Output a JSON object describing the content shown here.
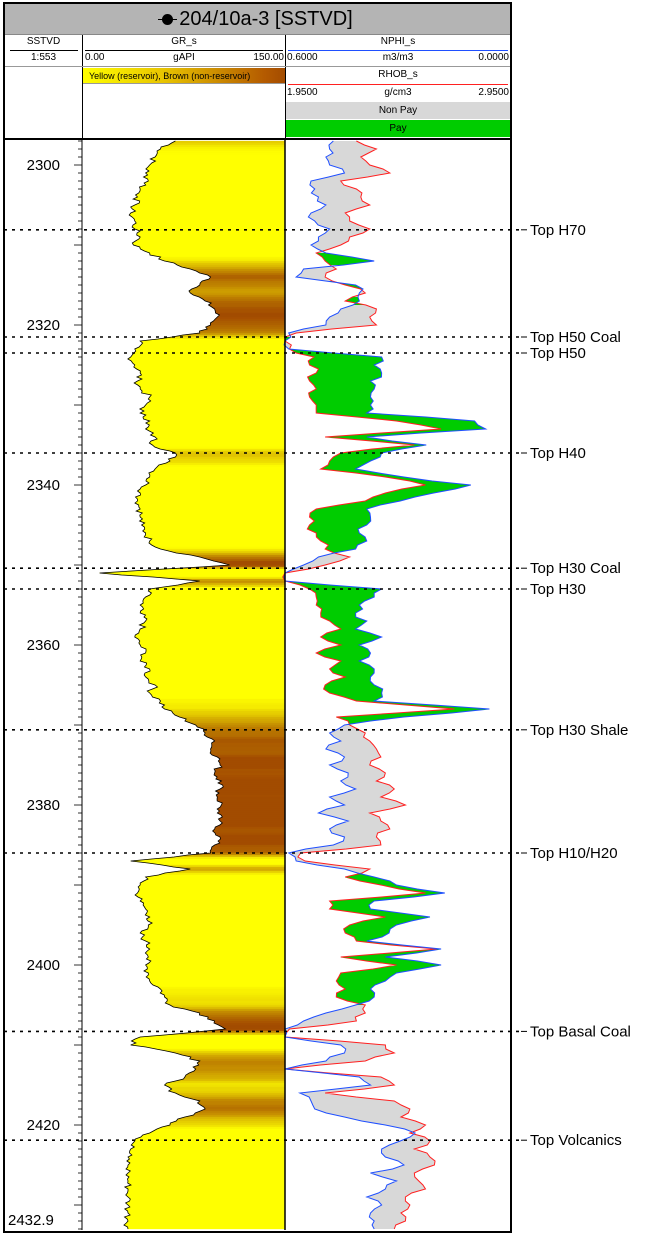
{
  "header": {
    "title": "204/10a-3 [SSTVD]",
    "depth_track": {
      "name": "SSTVD",
      "scale": "1:553"
    },
    "gr_track": {
      "name": "GR_s",
      "min": "0.00",
      "unit": "gAPI",
      "max": "150.00",
      "fill_legend": "Yellow (reservoir), Brown (non-reservoir)",
      "curve_color": "#000000"
    },
    "nphi_track": {
      "name": "NPHI_s",
      "min": "0.6000",
      "unit": "m3/m3",
      "max": "0.0000",
      "curve_color": "#1f4fff"
    },
    "rhob_track": {
      "name": "RHOB_s",
      "min": "1.9500",
      "unit": "g/cm3",
      "max": "2.9500",
      "curve_color": "#ff2020"
    },
    "legend_nonpay": "Non Pay",
    "legend_pay": "Pay"
  },
  "colors": {
    "reservoir": "#ffff00",
    "non_reservoir": "#a34c00",
    "pay": "#00cc00",
    "non_pay": "#d8d8d8"
  },
  "chart_data": {
    "type": "line",
    "title": "204/10a-3 [SSTVD]",
    "ylabel": "SSTVD",
    "ylim": [
      2296.9,
      2432.9
    ],
    "depth_ticks": [
      "2300",
      "2320",
      "2340",
      "2360",
      "2380",
      "2400",
      "2420"
    ],
    "bottom_depth_label": "2432.9",
    "depth_start": 2297,
    "depth_step": 1,
    "series": [
      {
        "name": "GR_s",
        "unit": "gAPI",
        "xlim": [
          0,
          150
        ],
        "values": [
          69,
          58,
          54,
          50,
          47,
          49,
          43,
          41,
          39,
          36,
          39,
          39,
          43,
          38,
          50,
          61,
          80,
          95,
          87,
          80,
          91,
          98,
          100,
          95,
          87,
          43,
          39,
          36,
          39,
          43,
          41,
          43,
          50,
          47,
          43,
          50,
          47,
          54,
          52,
          69,
          65,
          54,
          50,
          47,
          43,
          41,
          43,
          43,
          44,
          47,
          50,
          58,
          87,
          109,
          13,
          87,
          50,
          47,
          43,
          43,
          47,
          43,
          39,
          43,
          47,
          43,
          50,
          47,
          54,
          50,
          58,
          61,
          72,
          84,
          91,
          98,
          95,
          100,
          102,
          98,
          103,
          102,
          100,
          103,
          100,
          102,
          98,
          102,
          98,
          95,
          36,
          80,
          47,
          43,
          41,
          43,
          47,
          50,
          49,
          43,
          47,
          50,
          49,
          47,
          49,
          50,
          58,
          61,
          65,
          87,
          98,
          106,
          43,
          36,
          69,
          87,
          84,
          76,
          61,
          69,
          87,
          91,
          76,
          65,
          50,
          39,
          36,
          34,
          34,
          34,
          34,
          34,
          34,
          34,
          34,
          34,
          34
        ]
      },
      {
        "name": "NPHI_s",
        "unit": "m3/m3",
        "xlim": [
          0.6,
          0.0
        ],
        "values": [
          0.47,
          0.48,
          0.49,
          0.48,
          0.44,
          0.53,
          0.52,
          0.51,
          0.49,
          0.53,
          0.52,
          0.48,
          0.51,
          0.53,
          0.49,
          0.36,
          0.55,
          0.57,
          0.41,
          0.4,
          0.4,
          0.45,
          0.48,
          0.49,
          0.59,
          0.6,
          0.59,
          0.34,
          0.36,
          0.34,
          0.37,
          0.36,
          0.37,
          0.37,
          0.38,
          0.09,
          0.06,
          0.38,
          0.22,
          0.34,
          0.37,
          0.41,
          0.28,
          0.1,
          0.2,
          0.29,
          0.38,
          0.37,
          0.38,
          0.4,
          0.38,
          0.41,
          0.51,
          0.55,
          0.6,
          0.6,
          0.34,
          0.36,
          0.4,
          0.41,
          0.38,
          0.41,
          0.34,
          0.4,
          0.37,
          0.4,
          0.36,
          0.37,
          0.36,
          0.34,
          0.36,
          0.05,
          0.28,
          0.44,
          0.48,
          0.45,
          0.49,
          0.44,
          0.48,
          0.43,
          0.45,
          0.41,
          0.48,
          0.44,
          0.51,
          0.43,
          0.48,
          0.44,
          0.47,
          0.59,
          0.57,
          0.44,
          0.36,
          0.3,
          0.17,
          0.36,
          0.37,
          0.21,
          0.3,
          0.32,
          0.38,
          0.18,
          0.33,
          0.18,
          0.3,
          0.33,
          0.37,
          0.36,
          0.41,
          0.49,
          0.55,
          0.6,
          0.6,
          0.45,
          0.44,
          0.49,
          0.6,
          0.4,
          0.37,
          0.56,
          0.53,
          0.52,
          0.44,
          0.33,
          0.25,
          0.29,
          0.34,
          0.33,
          0.28,
          0.37,
          0.3,
          0.33,
          0.38,
          0.34,
          0.37,
          0.36,
          0.36
        ]
      },
      {
        "name": "RHOB_s",
        "unit": "g/cm3",
        "xlim": [
          1.95,
          2.95
        ],
        "values": [
          2.27,
          2.36,
          2.29,
          2.33,
          2.42,
          2.2,
          2.27,
          2.29,
          2.33,
          2.22,
          2.24,
          2.33,
          2.24,
          2.2,
          2.09,
          2.13,
          2.18,
          2.13,
          2.22,
          2.31,
          2.22,
          2.36,
          2.33,
          2.36,
          2.0,
          1.95,
          1.97,
          2.08,
          2.06,
          2.09,
          2.06,
          2.09,
          2.06,
          2.09,
          2.09,
          2.45,
          2.65,
          2.13,
          2.53,
          2.2,
          2.15,
          2.11,
          2.4,
          2.58,
          2.4,
          2.31,
          2.09,
          2.06,
          2.06,
          2.09,
          2.11,
          2.13,
          2.24,
          2.13,
          1.95,
          1.95,
          2.06,
          2.09,
          2.09,
          2.11,
          2.15,
          2.2,
          2.11,
          2.2,
          2.09,
          2.2,
          2.15,
          2.22,
          2.13,
          2.15,
          2.27,
          2.71,
          2.18,
          2.24,
          2.31,
          2.33,
          2.36,
          2.38,
          2.33,
          2.4,
          2.36,
          2.44,
          2.38,
          2.49,
          2.33,
          2.38,
          2.42,
          2.36,
          2.38,
          2.02,
          2.04,
          2.33,
          2.22,
          2.38,
          2.58,
          2.15,
          2.15,
          2.4,
          2.24,
          2.22,
          2.27,
          2.63,
          2.2,
          2.45,
          2.2,
          2.18,
          2.22,
          2.18,
          2.31,
          2.31,
          2.27,
          1.97,
          1.95,
          2.4,
          2.44,
          2.31,
          1.95,
          2.38,
          2.44,
          2.13,
          2.44,
          2.51,
          2.47,
          2.58,
          2.51,
          2.6,
          2.53,
          2.6,
          2.62,
          2.53,
          2.55,
          2.58,
          2.49,
          2.51,
          2.47,
          2.49,
          2.44
        ]
      }
    ],
    "tops": [
      {
        "label": "Top H70",
        "depth": 2308.1
      },
      {
        "label": "Top H50 Coal",
        "depth": 2321.5
      },
      {
        "label": "Top H50",
        "depth": 2323.5
      },
      {
        "label": "Top H40",
        "depth": 2336.0
      },
      {
        "label": "Top H30 Coal",
        "depth": 2350.4
      },
      {
        "label": "Top H30",
        "depth": 2353.0
      },
      {
        "label": "Top H30 Shale",
        "depth": 2370.6
      },
      {
        "label": "Top H10/H20",
        "depth": 2386.0
      },
      {
        "label": "Top Basal Coal",
        "depth": 2408.3
      },
      {
        "label": "Top Volcanics",
        "depth": 2421.9
      }
    ]
  }
}
